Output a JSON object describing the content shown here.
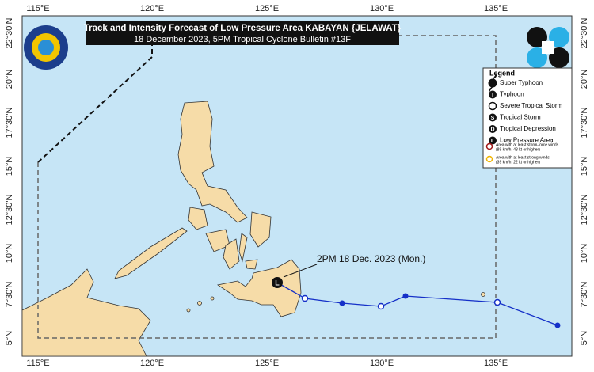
{
  "header": {
    "title": "Track and Intensity Forecast of Low Pressure Area KABAYAN {JELAWAT}",
    "subtitle": "18 December 2023, 5PM Tropical Cyclone Bulletin #13F"
  },
  "longitudes": [
    "115°E",
    "120°E",
    "125°E",
    "130°E",
    "135°E"
  ],
  "latitudes": [
    "22°30'N",
    "20°N",
    "17°30'N",
    "15°N",
    "12°30'N",
    "10°N",
    "7°30'N",
    "5°N"
  ],
  "legend": {
    "title": "Legend",
    "items": [
      {
        "label": "Super Typhoon"
      },
      {
        "symbol": "T",
        "label": "Typhoon"
      },
      {
        "label": "Severe Tropical Storm"
      },
      {
        "symbol": "S",
        "label": "Tropical Storm"
      },
      {
        "symbol": "D",
        "label": "Tropical Depression"
      },
      {
        "symbol": "L",
        "label": "Low Pressure Area"
      }
    ],
    "areas": [
      {
        "line1": "Area with at least storm-force winds",
        "line2": "(89 km/h, 48 kt or higher)"
      },
      {
        "line1": "Area with at least strong winds",
        "line2": "(39 km/h, 22 kt or higher)"
      }
    ]
  },
  "track": {
    "marker": "L",
    "label": "2PM 18 Dec. 2023 (Mon.)"
  }
}
